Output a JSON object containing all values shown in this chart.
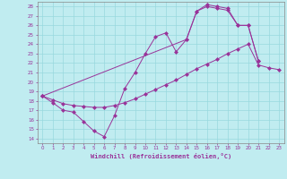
{
  "xlabel": "Windchill (Refroidissement éolien,°C)",
  "bg_color": "#c0ecf0",
  "grid_color": "#98d8de",
  "line_color": "#993399",
  "xlim": [
    -0.5,
    23.5
  ],
  "ylim": [
    13.5,
    28.5
  ],
  "xticks": [
    0,
    1,
    2,
    3,
    4,
    5,
    6,
    7,
    8,
    9,
    10,
    11,
    12,
    13,
    14,
    15,
    16,
    17,
    18,
    19,
    20,
    21,
    22,
    23
  ],
  "yticks": [
    14,
    15,
    16,
    17,
    18,
    19,
    20,
    21,
    22,
    23,
    24,
    25,
    26,
    27,
    28
  ],
  "line1_x": [
    0,
    1,
    2,
    3,
    4,
    5,
    6,
    7,
    8,
    9,
    10,
    11,
    12,
    13,
    14,
    15,
    16,
    17,
    18,
    19,
    20,
    21
  ],
  "line1_y": [
    18.5,
    17.8,
    17.0,
    16.8,
    15.8,
    14.8,
    14.2,
    16.4,
    19.3,
    21.0,
    23.0,
    24.8,
    25.2,
    23.2,
    24.5,
    27.5,
    28.2,
    28.0,
    27.8,
    26.0,
    26.0,
    22.2
  ],
  "line2_x": [
    0,
    1,
    2,
    3,
    4,
    5,
    6,
    7,
    8,
    9,
    10,
    11,
    12,
    13,
    14,
    15,
    16,
    17,
    18,
    19,
    20,
    21,
    22,
    23
  ],
  "line2_y": [
    18.5,
    18.1,
    17.7,
    17.5,
    17.4,
    17.3,
    17.3,
    17.5,
    17.8,
    18.2,
    18.7,
    19.2,
    19.7,
    20.2,
    20.8,
    21.4,
    21.9,
    22.4,
    23.0,
    23.5,
    24.0,
    21.8,
    21.5,
    21.3
  ],
  "line3_x": [
    0,
    14,
    15,
    16,
    17,
    18,
    19,
    20,
    21
  ],
  "line3_y": [
    18.5,
    24.5,
    27.5,
    28.0,
    27.8,
    27.6,
    26.0,
    26.0,
    22.2
  ]
}
